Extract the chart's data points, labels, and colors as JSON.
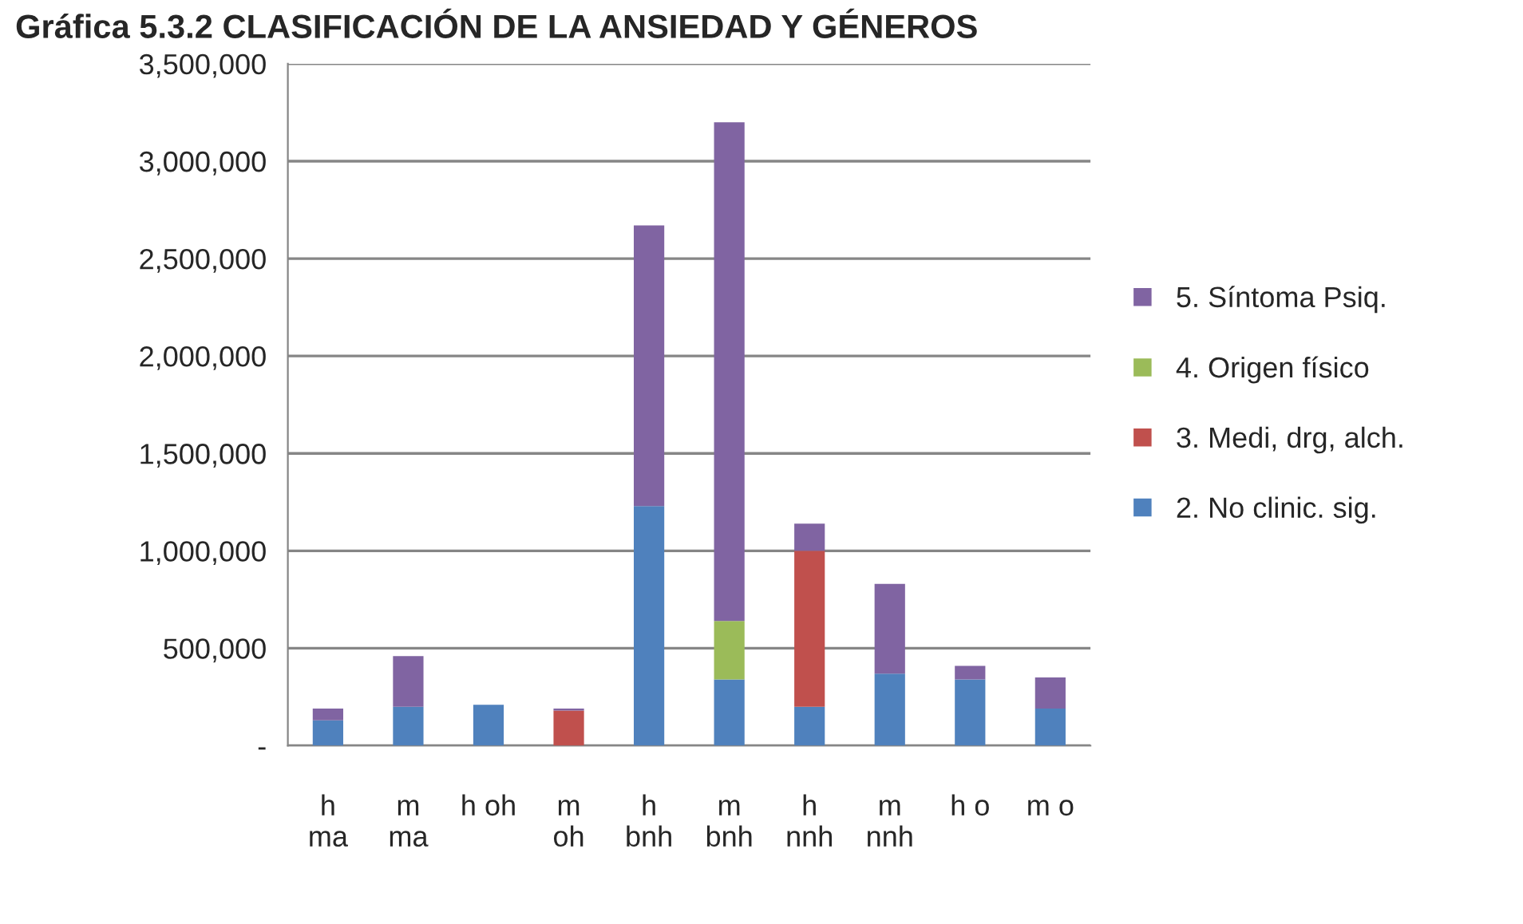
{
  "chart_data": {
    "type": "bar",
    "title": "Gráfica 5.3.2 CLASIFICACIÓN DE LA ANSIEDAD Y GÉNEROS",
    "categories": [
      "h\nma",
      "m\nma",
      "h oh",
      "m\noh",
      "h\nbnh",
      "m\nbnh",
      "h\nnnh",
      "m\nnnh",
      "h o",
      "m o"
    ],
    "stacked": true,
    "series": [
      {
        "name": "2. No clinic. sig.",
        "color": "#4f81bd",
        "values": [
          130000,
          200000,
          210000,
          null,
          1230000,
          340000,
          200000,
          370000,
          340000,
          190000
        ]
      },
      {
        "name": "3. Medi, drg, alch.",
        "color": "#c0504d",
        "values": [
          null,
          null,
          null,
          180000,
          null,
          null,
          800000,
          null,
          null,
          null
        ]
      },
      {
        "name": "4. Origen físico",
        "color": "#9bbb59",
        "values": [
          null,
          null,
          null,
          null,
          null,
          300000,
          null,
          null,
          null,
          null
        ]
      },
      {
        "name": "5. Síntoma Psiq.",
        "color": "#8064a2",
        "values": [
          60000,
          260000,
          null,
          10000,
          1440000,
          2560000,
          140000,
          460000,
          70000,
          160000
        ]
      }
    ],
    "ylim": [
      0,
      3500000
    ],
    "yticks": [
      {
        "value": 0,
        "label": "-"
      },
      {
        "value": 500000,
        "label": "500,000"
      },
      {
        "value": 1000000,
        "label": "1,000,000"
      },
      {
        "value": 1500000,
        "label": "1,500,000"
      },
      {
        "value": 2000000,
        "label": "2,000,000"
      },
      {
        "value": 2500000,
        "label": "2,500,000"
      },
      {
        "value": 3000000,
        "label": "3,000,000"
      },
      {
        "value": 3500000,
        "label": "3,500,000"
      }
    ],
    "grid": "y",
    "legend": "right"
  }
}
